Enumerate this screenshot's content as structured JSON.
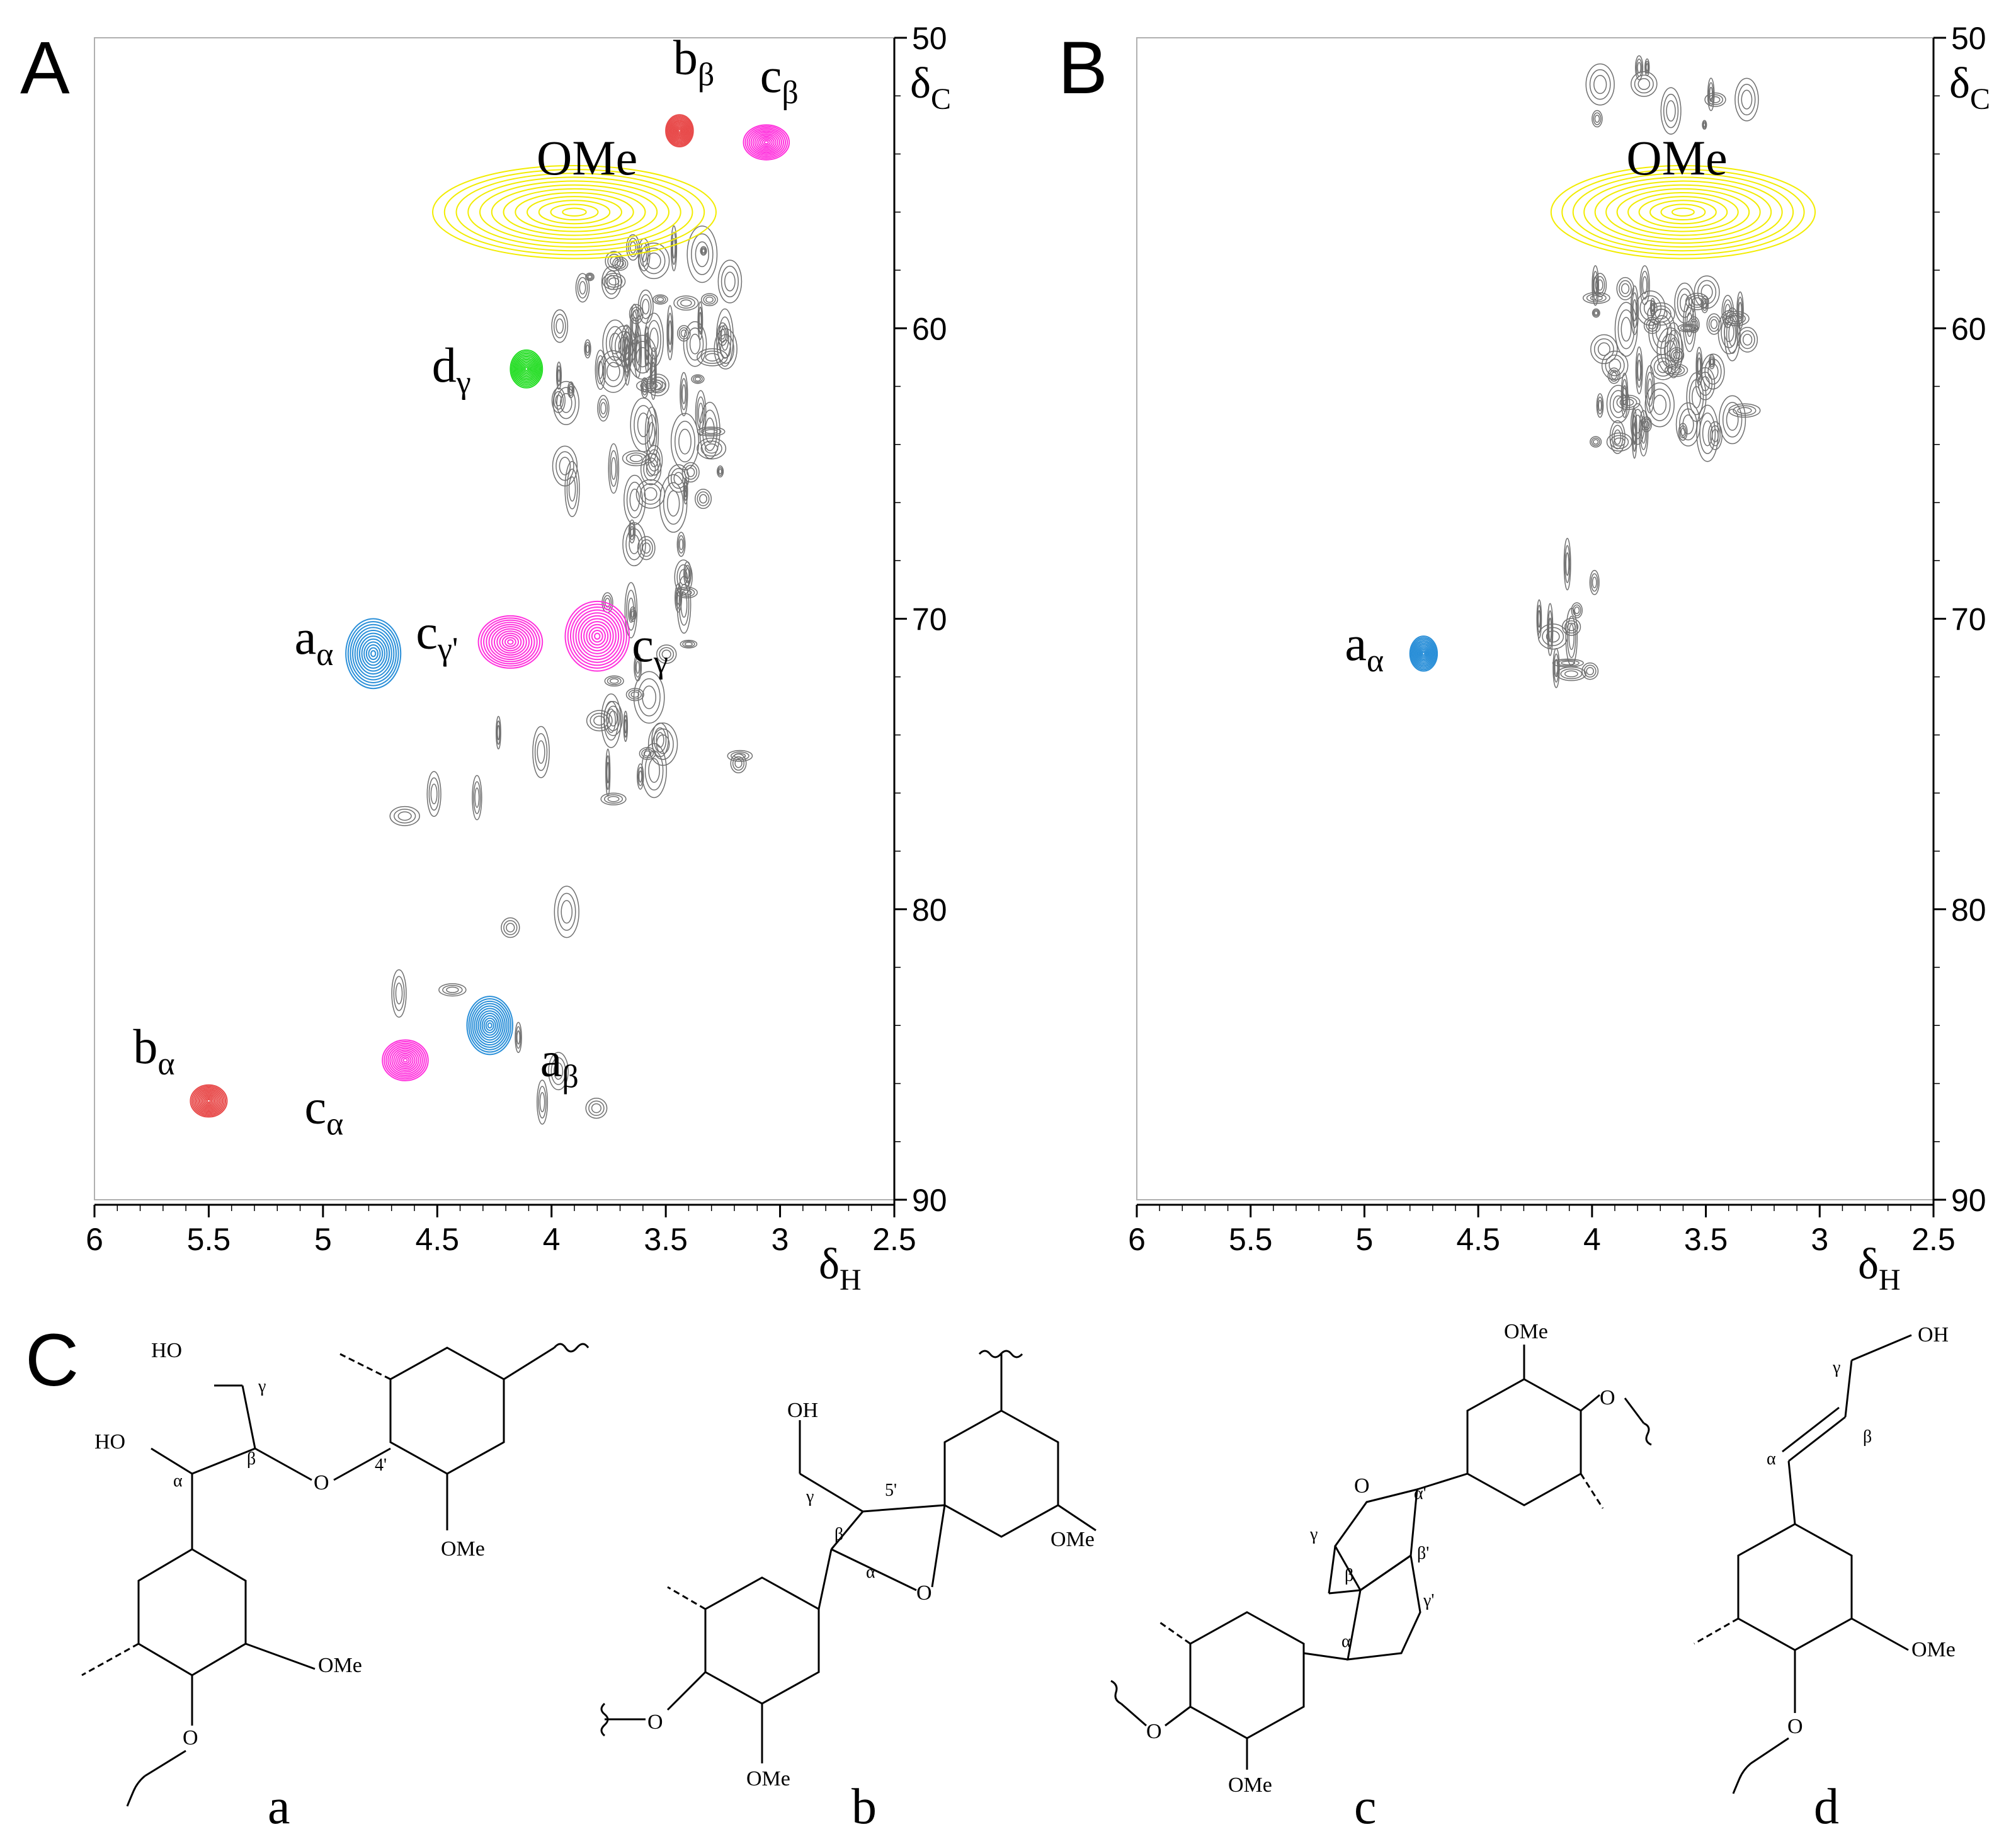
{
  "panels": {
    "A": {
      "letter": "A"
    },
    "B": {
      "letter": "B"
    },
    "C": {
      "letter": "C"
    }
  },
  "chart_data": [
    {
      "type": "scatter",
      "panel": "A",
      "xlabel_main": "δ",
      "xlabel_sub": "H",
      "ylabel_main": "δ",
      "ylabel_sub": "C",
      "xlim": [
        6,
        2.5
      ],
      "ylim": [
        50,
        90
      ],
      "x_ticks": [
        "6",
        "5.5",
        "5",
        "4.5",
        "4",
        "3.5",
        "3",
        "2.5"
      ],
      "y_ticks": [
        "50",
        "60",
        "70",
        "80",
        "90"
      ],
      "peaks": [
        {
          "main": "OMe",
          "sub": "",
          "x": 3.9,
          "y": 56.0,
          "color": "#f2ec00",
          "rx": 0.62,
          "ry": 1.6
        },
        {
          "main": "b",
          "sub": "β",
          "x": 3.44,
          "y": 53.2,
          "color": "#e84a4a",
          "rx": 0.06,
          "ry": 0.55
        },
        {
          "main": "c",
          "sub": "β",
          "x": 3.06,
          "y": 53.6,
          "color": "#ff33dd",
          "rx": 0.1,
          "ry": 0.6
        },
        {
          "main": "d",
          "sub": "γ",
          "x": 4.11,
          "y": 61.4,
          "color": "#22dd22",
          "rx": 0.07,
          "ry": 0.65
        },
        {
          "main": "a",
          "sub": "α",
          "x": 4.78,
          "y": 71.2,
          "color": "#2a8fd8",
          "rx": 0.12,
          "ry": 1.2
        },
        {
          "main": "c",
          "sub": "γ'",
          "x": 4.18,
          "y": 70.8,
          "color": "#ff33dd",
          "rx": 0.14,
          "ry": 0.9
        },
        {
          "main": "c",
          "sub": "γ",
          "x": 3.8,
          "y": 70.6,
          "color": "#ff33dd",
          "rx": 0.14,
          "ry": 1.2
        },
        {
          "main": "a",
          "sub": "β",
          "x": 4.27,
          "y": 84.0,
          "color": "#2a8fd8",
          "rx": 0.1,
          "ry": 1.0
        },
        {
          "main": "c",
          "sub": "α",
          "x": 4.64,
          "y": 85.2,
          "color": "#ff33dd",
          "rx": 0.1,
          "ry": 0.7
        },
        {
          "main": "b",
          "sub": "α",
          "x": 5.5,
          "y": 86.6,
          "color": "#e84a4a",
          "rx": 0.08,
          "ry": 0.55
        }
      ]
    },
    {
      "type": "scatter",
      "panel": "B",
      "xlabel_main": "δ",
      "xlabel_sub": "H",
      "ylabel_main": "δ",
      "ylabel_sub": "C",
      "xlim": [
        6,
        2.5
      ],
      "ylim": [
        50,
        90
      ],
      "x_ticks": [
        "6",
        "5.5",
        "5",
        "4.5",
        "4",
        "3.5",
        "3",
        "2.5"
      ],
      "y_ticks": [
        "50",
        "60",
        "70",
        "80",
        "90"
      ],
      "peaks": [
        {
          "main": "OMe",
          "sub": "",
          "x": 3.6,
          "y": 56.0,
          "color": "#f2ec00",
          "rx": 0.58,
          "ry": 1.6
        },
        {
          "main": "a",
          "sub": "α",
          "x": 4.74,
          "y": 71.2,
          "color": "#2a8fd8",
          "rx": 0.06,
          "ry": 0.6
        }
      ]
    }
  ],
  "structures": [
    {
      "caption": "a",
      "labels": [
        "HO",
        "γ",
        "HO",
        "β",
        "O",
        "4'",
        "α",
        "OMe",
        "OMe",
        "O"
      ]
    },
    {
      "caption": "b",
      "labels": [
        "OH",
        "γ",
        "5'",
        "β",
        "α",
        "O",
        "OMe",
        "O",
        "OMe"
      ]
    },
    {
      "caption": "c",
      "labels": [
        "OMe",
        "O",
        "α'",
        "γ",
        "β'",
        "β",
        "γ'",
        "α",
        "O",
        "O",
        "OMe"
      ]
    },
    {
      "caption": "d",
      "labels": [
        "OH",
        "γ",
        "β",
        "α",
        "OMe",
        "O"
      ]
    }
  ]
}
